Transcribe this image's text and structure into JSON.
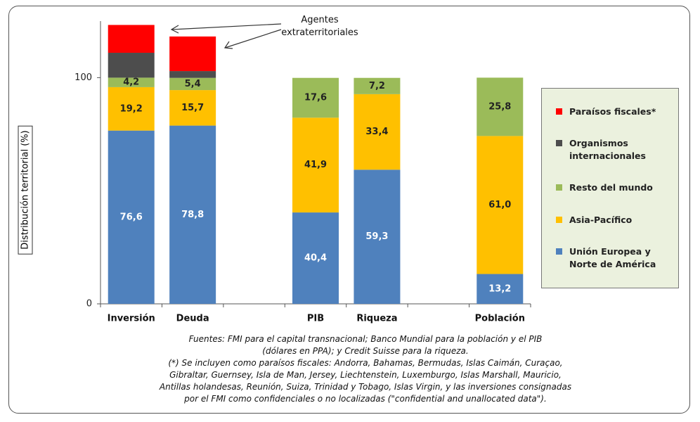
{
  "chart_data": {
    "type": "stacked_bar",
    "ylabel": "Distribución territorial (%)",
    "annotation": "Agentes extraterritoriales",
    "categories": [
      "Inversión",
      "Deuda",
      null,
      "PIB",
      "Riqueza",
      null,
      "Población"
    ],
    "ylim": [
      0,
      125
    ],
    "yticks": [
      0,
      100
    ],
    "series": [
      {
        "name": "Unión Europea y Norte de América",
        "color": "#4f81bd",
        "values": [
          76.6,
          78.8,
          null,
          40.4,
          59.3,
          null,
          13.2
        ],
        "value_labels": [
          "76,6",
          "78,8",
          null,
          "40,4",
          "59,3",
          null,
          "13,2"
        ]
      },
      {
        "name": "Asia-Pacífico",
        "color": "#ffc000",
        "values": [
          19.2,
          15.7,
          null,
          41.9,
          33.4,
          null,
          61.0
        ],
        "value_labels": [
          "19,2",
          "15,7",
          null,
          "41,9",
          "33,4",
          null,
          "61,0"
        ]
      },
      {
        "name": "Resto del mundo",
        "color": "#9bbb59",
        "values": [
          4.2,
          5.4,
          null,
          17.6,
          7.2,
          null,
          25.8
        ],
        "value_labels": [
          "4,2",
          "5,4",
          null,
          "17,6",
          "7,2",
          null,
          "25,8"
        ]
      },
      {
        "name": "Organismos internacionales",
        "color": "#4d4d4d",
        "values": [
          11,
          3,
          null,
          null,
          null,
          null,
          null
        ]
      },
      {
        "name": "Paraísos fiscales*",
        "color": "#ff0000",
        "values": [
          12.3,
          15.3,
          null,
          null,
          null,
          null,
          null
        ]
      }
    ],
    "notes": [
      "Fuentes: FMI para  el capital transnacional; Banco Mundial para la población y el PIB",
      "(dólares en PPA); y Credit Suisse para la riqueza.",
      "(*) Se incluyen como paraísos fiscales: Andorra, Bahamas, Bermudas, Islas Caimán, Curaçao,",
      "Gibraltar, Guernsey, Isla de Man, Jersey, Liechtenstein, Luxemburgo, Islas Marshall, Mauricio,",
      "Antillas holandesas, Reunión, Suiza, Trinidad y Tobago, Islas Virgin, y las inversiones consignadas",
      "por el FMI como confidenciales o no localizadas (\"confidential and unallocated data\")."
    ]
  }
}
